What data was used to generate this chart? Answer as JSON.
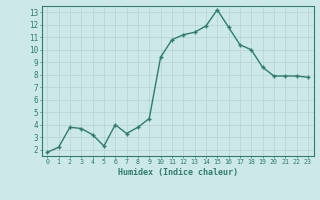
{
  "x": [
    0,
    1,
    2,
    3,
    4,
    5,
    6,
    7,
    8,
    9,
    10,
    11,
    12,
    13,
    14,
    15,
    16,
    17,
    18,
    19,
    20,
    21,
    22,
    23
  ],
  "y": [
    1.8,
    2.2,
    3.8,
    3.7,
    3.2,
    2.3,
    4.0,
    3.3,
    3.8,
    4.5,
    9.4,
    10.8,
    11.2,
    11.4,
    11.9,
    13.2,
    11.8,
    10.4,
    10.0,
    8.6,
    7.9,
    7.9,
    7.9,
    7.8
  ],
  "xlabel": "Humidex (Indice chaleur)",
  "ylabel_ticks": [
    2,
    3,
    4,
    5,
    6,
    7,
    8,
    9,
    10,
    11,
    12,
    13
  ],
  "ylim": [
    1.5,
    13.5
  ],
  "xlim": [
    -0.5,
    23.5
  ],
  "line_color": "#2e7d6e",
  "marker_color": "#2e7d6e",
  "bg_color": "#cce8e8",
  "grid_color": "#b8d0d0",
  "axis_color": "#2e7d6e",
  "tick_color": "#2e7d6e",
  "label_color": "#2e7d6e"
}
